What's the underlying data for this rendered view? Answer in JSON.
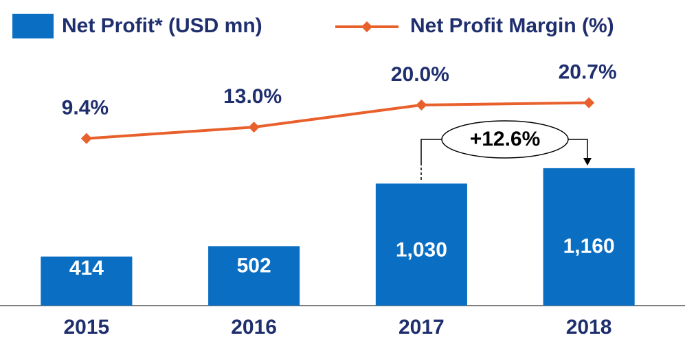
{
  "chart_data": {
    "type": "bar",
    "categories": [
      "2015",
      "2016",
      "2017",
      "2018"
    ],
    "series": [
      {
        "name": "Net Profit* (USD mn)",
        "color": "#0a6fc2",
        "values": [
          414,
          502,
          1030,
          1160
        ],
        "value_labels": [
          "414",
          "502",
          "1,030",
          "1,160"
        ]
      },
      {
        "name": "Net Profit Margin (%)",
        "type": "line",
        "axis": "y2",
        "color": "#e8602c",
        "values": [
          9.4,
          13.0,
          20.0,
          20.7
        ],
        "value_labels": [
          "9.4%",
          "13.0%",
          "20.0%",
          "20.7%"
        ]
      }
    ],
    "ylim": [
      0,
      2000
    ],
    "y2lim": [
      -43.5,
      31.5
    ],
    "annotations": [
      {
        "text": "+12.6%"
      }
    ]
  }
}
